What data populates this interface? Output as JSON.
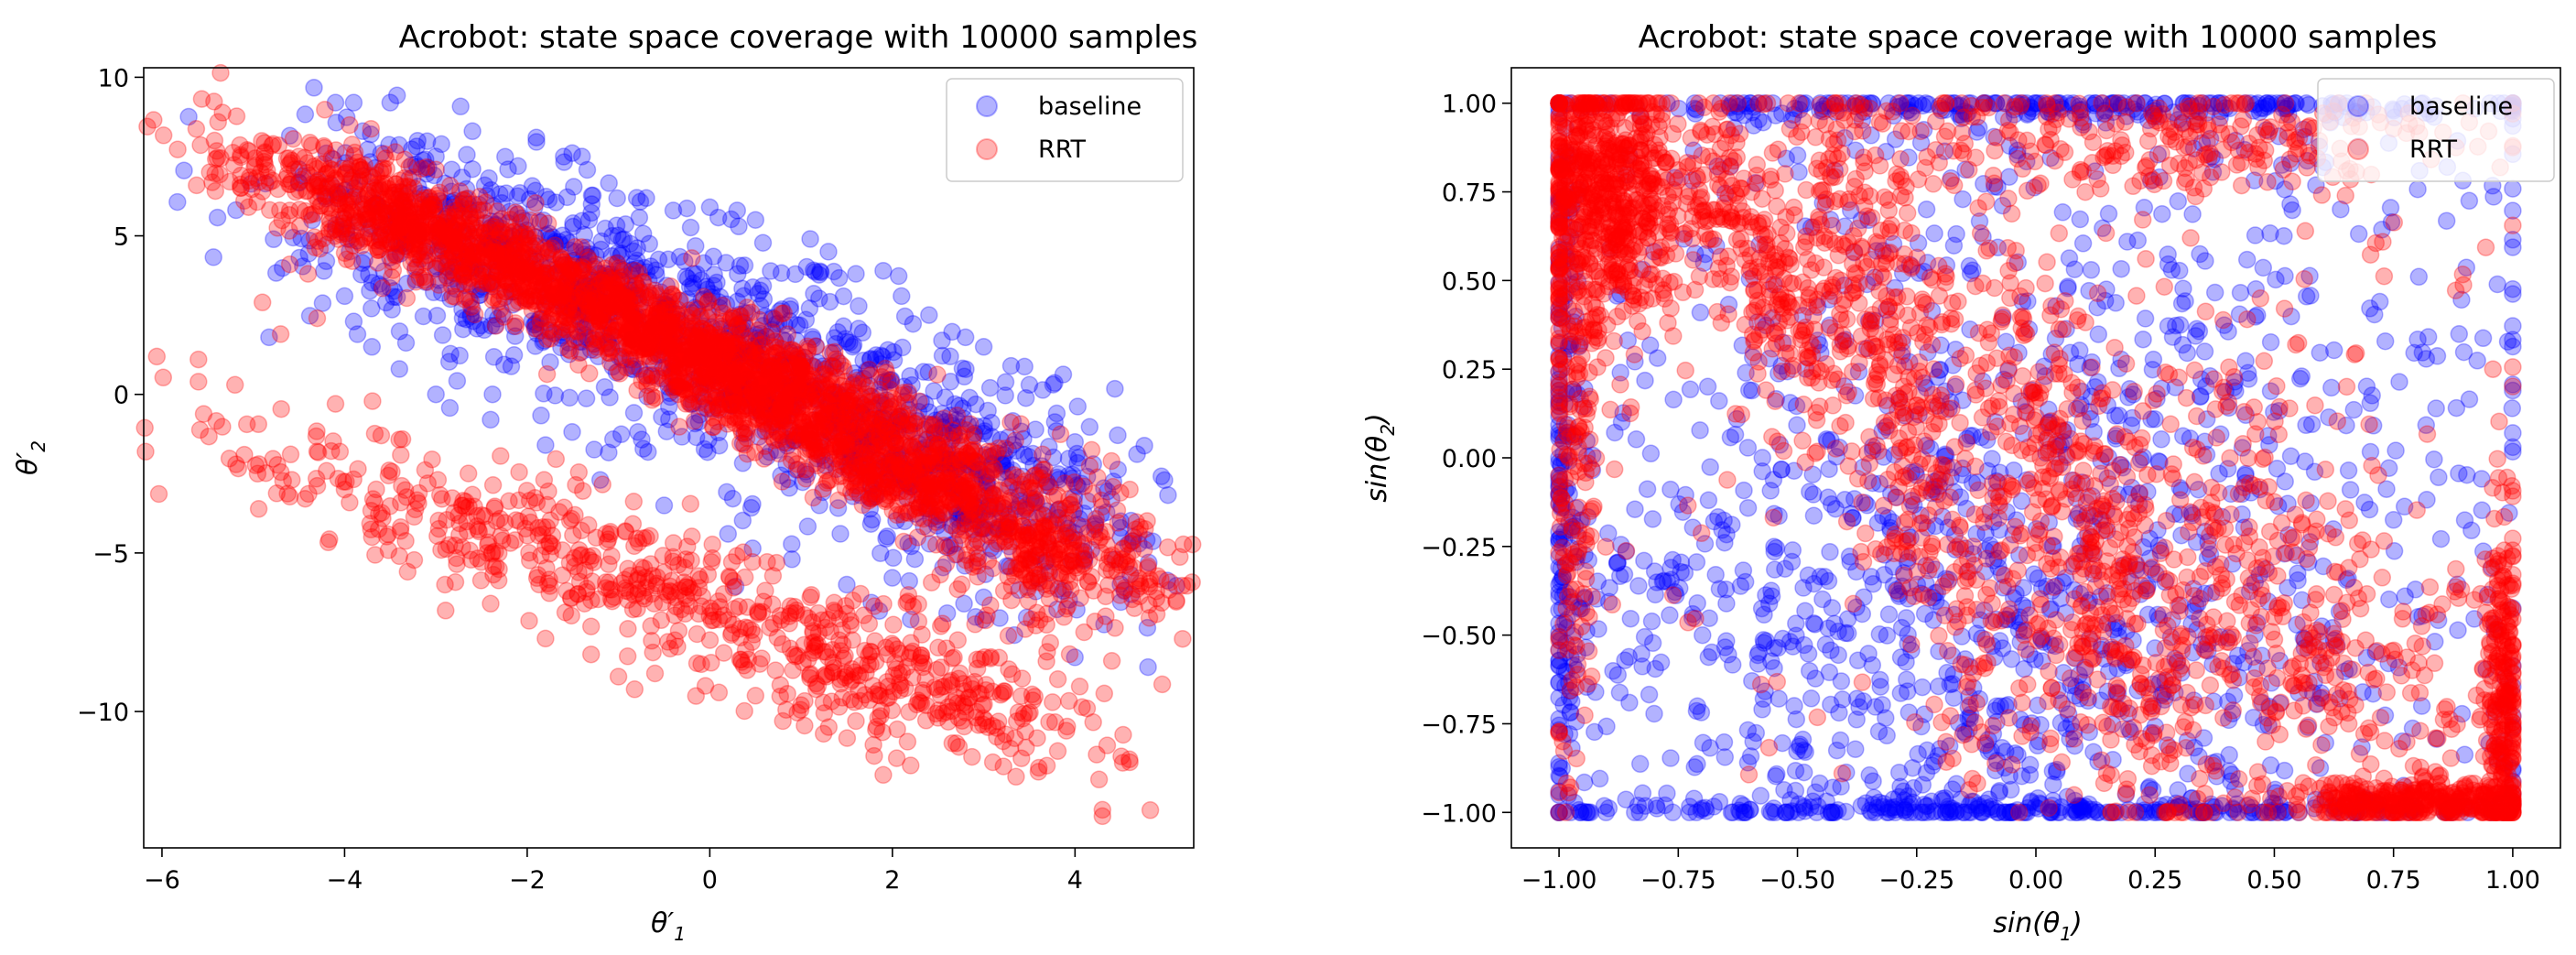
{
  "chart_data": [
    {
      "type": "scatter",
      "title": "Acrobot: state space coverage with 10000 samples",
      "xlabel": "θ′1",
      "ylabel": "θ′2",
      "xlabel_main": "θ′",
      "xlabel_sub": "1",
      "ylabel_main": "θ′",
      "ylabel_sub": "2",
      "xlim": [
        -6.2,
        5.3
      ],
      "ylim": [
        -14.3,
        10.3
      ],
      "xticks": [
        -6,
        -4,
        -2,
        0,
        2,
        4
      ],
      "xtick_labels": [
        "−6",
        "−4",
        "−2",
        "0",
        "2",
        "4"
      ],
      "yticks": [
        -10,
        -5,
        0,
        5,
        10
      ],
      "ytick_labels": [
        "−10",
        "−5",
        "0",
        "5",
        "10"
      ],
      "legend_position": "top-right",
      "series": [
        {
          "name": "baseline",
          "color": "#0000ff",
          "points": [
            [
              -4.1,
              9.2
            ],
            [
              -3.9,
              9.2
            ],
            [
              -3.5,
              9.2
            ],
            [
              -3.8,
              8.3
            ],
            [
              -3.6,
              7.6
            ],
            [
              -2.6,
              8.3
            ],
            [
              -3.2,
              8.0
            ],
            [
              -1.9,
              8.1
            ],
            [
              -1.6,
              7.5
            ],
            [
              -1.4,
              7.5
            ],
            [
              -2.1,
              7.2
            ],
            [
              -3.0,
              7.5
            ],
            [
              -4.2,
              7.6
            ],
            [
              -4.5,
              7.1
            ],
            [
              -0.8,
              6.2
            ],
            [
              -0.4,
              5.8
            ],
            [
              0.0,
              5.9
            ],
            [
              0.3,
              5.8
            ],
            [
              0.5,
              5.5
            ],
            [
              1.1,
              4.9
            ],
            [
              1.3,
              4.5
            ],
            [
              1.6,
              3.8
            ],
            [
              1.9,
              3.9
            ],
            [
              2.1,
              3.1
            ],
            [
              2.4,
              2.5
            ],
            [
              2.8,
              1.8
            ],
            [
              3.0,
              1.5
            ],
            [
              3.3,
              0.9
            ],
            [
              3.5,
              0.3
            ],
            [
              3.8,
              -0.6
            ],
            [
              4.0,
              -1.5
            ],
            [
              4.2,
              -2.2
            ],
            [
              4.4,
              -3.3
            ],
            [
              4.5,
              -4.0
            ],
            [
              4.8,
              -8.6
            ],
            [
              4.5,
              -4.5
            ],
            [
              4.1,
              -5.2
            ],
            [
              3.6,
              -5.8
            ],
            [
              3.0,
              -6.4
            ],
            [
              2.6,
              -6.9
            ],
            [
              2.2,
              -7.1
            ],
            [
              1.5,
              -6.0
            ],
            [
              0.9,
              -5.2
            ],
            [
              0.2,
              -4.4
            ],
            [
              -0.5,
              -3.5
            ],
            [
              -1.2,
              -2.7
            ],
            [
              -1.8,
              -1.6
            ],
            [
              -2.4,
              -0.8
            ],
            [
              -3.0,
              0.0
            ],
            [
              -3.4,
              0.8
            ],
            [
              -3.7,
              1.5
            ],
            [
              -3.9,
              2.3
            ],
            [
              -4.0,
              3.1
            ],
            [
              -4.2,
              4.2
            ],
            [
              -4.1,
              5.2
            ],
            [
              -3.8,
              6.0
            ]
          ],
          "cloud": [
            {
              "cx": -1.2,
              "cy": 3.2,
              "sx": 1.6,
              "sy": 1.6,
              "rho": -0.55,
              "n": 520
            },
            {
              "cx": 1.2,
              "cy": -0.6,
              "sx": 1.6,
              "sy": 1.9,
              "rho": -0.6,
              "n": 520
            },
            {
              "cx": 3.0,
              "cy": -3.4,
              "sx": 0.9,
              "sy": 1.8,
              "rho": -0.5,
              "n": 260
            },
            {
              "cx": -3.0,
              "cy": 6.0,
              "sx": 0.9,
              "sy": 1.3,
              "rho": -0.3,
              "n": 160
            }
          ]
        },
        {
          "name": "RRT",
          "color": "#ff0000",
          "points": [
            [
              -5.6,
              1.1
            ],
            [
              -5.6,
              0.4
            ],
            [
              -5.2,
              0.3
            ],
            [
              -4.9,
              2.9
            ],
            [
              -4.7,
              1.9
            ],
            [
              -4.6,
              4.1
            ],
            [
              -4.5,
              7.5
            ],
            [
              -4.4,
              7.3
            ],
            [
              -4.4,
              3.8
            ],
            [
              -4.3,
              2.4
            ],
            [
              -4.1,
              -0.3
            ],
            [
              -4.9,
              6.4
            ],
            [
              -4.6,
              5.8
            ],
            [
              4.3,
              -13.1
            ],
            [
              4.3,
              -13.3
            ],
            [
              4.6,
              -11.6
            ],
            [
              4.7,
              -5.8
            ],
            [
              4.7,
              -4.4
            ],
            [
              4.6,
              -3.0
            ],
            [
              4.4,
              -2.1
            ],
            [
              4.1,
              -2.9
            ],
            [
              3.6,
              -11.9
            ],
            [
              3.1,
              -11.6
            ],
            [
              2.7,
              -11.0
            ],
            [
              2.5,
              -10.2
            ],
            [
              2.2,
              -11.7
            ],
            [
              1.9,
              -12.0
            ],
            [
              1.8,
              -11.4
            ],
            [
              1.6,
              -10.3
            ],
            [
              1.0,
              -9.8
            ],
            [
              0.8,
              -10.3
            ],
            [
              0.5,
              -9.5
            ],
            [
              0.1,
              -9.4
            ],
            [
              -0.6,
              -8.8
            ],
            [
              -1.0,
              -8.9
            ],
            [
              -1.3,
              -8.2
            ],
            [
              -1.8,
              -7.7
            ],
            [
              -2.4,
              -6.6
            ],
            [
              -2.9,
              -6.0
            ],
            [
              -3.4,
              -5.1
            ],
            [
              -3.7,
              -4.5
            ],
            [
              -4.0,
              -3.0
            ],
            [
              -4.3,
              -1.8
            ],
            [
              4.1,
              -7.5
            ],
            [
              -3.8,
              7.1
            ]
          ],
          "cloud": [
            {
              "cx": -1.0,
              "cy": 2.6,
              "sx": 2.2,
              "sy": 2.6,
              "rho": -0.96,
              "n": 1700
            },
            {
              "cx": 1.8,
              "cy": -2.2,
              "sx": 1.6,
              "sy": 2.2,
              "rho": -0.95,
              "n": 900
            },
            {
              "cx": -3.4,
              "cy": 5.8,
              "sx": 0.55,
              "sy": 1.0,
              "rho": -0.6,
              "n": 220
            },
            {
              "cx": -1.0,
              "cy": -5.6,
              "sx": 2.4,
              "sy": 2.4,
              "rho": -0.9,
              "n": 520
            },
            {
              "cx": 2.2,
              "cy": -9.4,
              "sx": 1.1,
              "sy": 1.2,
              "rho": -0.6,
              "n": 220
            },
            {
              "cx": 3.6,
              "cy": -5.0,
              "sx": 0.6,
              "sy": 1.6,
              "rho": -0.3,
              "n": 120
            }
          ]
        }
      ]
    },
    {
      "type": "scatter",
      "title": "Acrobot: state space coverage with 10000 samples",
      "xlabel": "sin(θ1)",
      "ylabel": "sin(θ2)",
      "xlabel_main": "sin(θ",
      "xlabel_sub": "1",
      "xlabel_end": ")",
      "ylabel_main": "sin(θ",
      "ylabel_sub": "2",
      "ylabel_end": ")",
      "xlim": [
        -1.1,
        1.1
      ],
      "ylim": [
        -1.1,
        1.1
      ],
      "xticks": [
        -1.0,
        -0.75,
        -0.5,
        -0.25,
        0.0,
        0.25,
        0.5,
        0.75,
        1.0
      ],
      "xtick_labels": [
        "−1.00",
        "−0.75",
        "−0.50",
        "−0.25",
        "0.00",
        "0.25",
        "0.50",
        "0.75",
        "1.00"
      ],
      "yticks": [
        -1.0,
        -0.75,
        -0.5,
        -0.25,
        0.0,
        0.25,
        0.5,
        0.75,
        1.0
      ],
      "ytick_labels": [
        "−1.00",
        "−0.75",
        "−0.50",
        "−0.25",
        "0.00",
        "0.25",
        "0.50",
        "0.75",
        "1.00"
      ],
      "legend_position": "top-right",
      "series": [
        {
          "name": "baseline",
          "color": "#0000ff",
          "points": [],
          "cloud": [
            {
              "cx": 0.0,
              "cy": 0.0,
              "sx": 0.75,
              "sy": 0.75,
              "rho": 0.0,
              "n": 1300
            },
            {
              "cx": -0.2,
              "cy": -0.55,
              "sx": 0.45,
              "sy": 0.35,
              "rho": 0.0,
              "n": 500
            },
            {
              "cx": 0.0,
              "cy": -0.99,
              "sx": 0.55,
              "sy": 0.02,
              "rho": 0.0,
              "n": 260
            },
            {
              "cx": 0.0,
              "cy": 0.99,
              "sx": 0.6,
              "sy": 0.02,
              "rho": 0.0,
              "n": 260
            },
            {
              "cx": -0.99,
              "cy": 0.0,
              "sx": 0.02,
              "sy": 0.6,
              "rho": 0.0,
              "n": 160
            }
          ]
        },
        {
          "name": "RRT",
          "color": "#ff0000",
          "points": [],
          "cloud": [
            {
              "cx": -0.9,
              "cy": 0.75,
              "sx": 0.08,
              "sy": 0.2,
              "rho": 0.0,
              "n": 700
            },
            {
              "cx": -0.97,
              "cy": 0.0,
              "sx": 0.03,
              "sy": 0.55,
              "rho": 0.0,
              "n": 200
            },
            {
              "cx": -0.58,
              "cy": 0.55,
              "sx": 0.09,
              "sy": 0.25,
              "rho": -0.7,
              "n": 260
            },
            {
              "cx": -0.28,
              "cy": 0.2,
              "sx": 0.13,
              "sy": 0.55,
              "rho": -0.85,
              "n": 420
            },
            {
              "cx": 0.1,
              "cy": -0.3,
              "sx": 0.16,
              "sy": 0.55,
              "rho": -0.85,
              "n": 420
            },
            {
              "cx": 0.55,
              "cy": -0.5,
              "sx": 0.25,
              "sy": 0.35,
              "rho": -0.7,
              "n": 380
            },
            {
              "cx": 0.8,
              "cy": -0.97,
              "sx": 0.15,
              "sy": 0.03,
              "rho": 0.0,
              "n": 300
            },
            {
              "cx": 0.98,
              "cy": -0.7,
              "sx": 0.02,
              "sy": 0.25,
              "rho": 0.0,
              "n": 260
            },
            {
              "cx": 0.2,
              "cy": 0.9,
              "sx": 0.35,
              "sy": 0.08,
              "rho": 0.0,
              "n": 260
            },
            {
              "cx": 0.3,
              "cy": 0.0,
              "sx": 0.6,
              "sy": 0.55,
              "rho": 0.0,
              "n": 300
            }
          ]
        }
      ]
    }
  ]
}
